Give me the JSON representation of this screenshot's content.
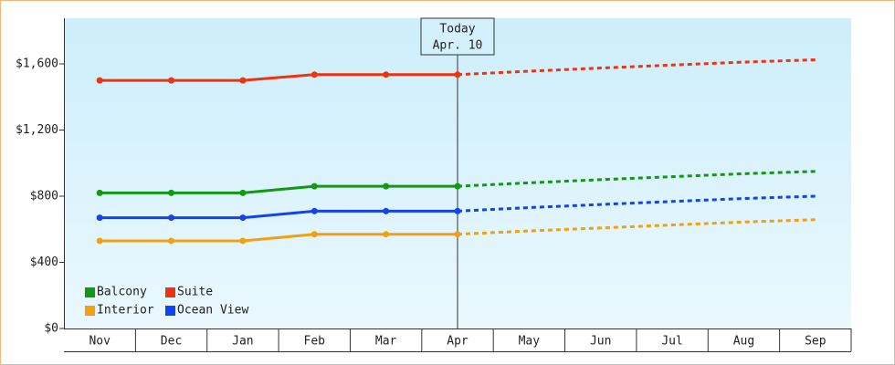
{
  "chart_data": {
    "type": "line",
    "categories": [
      "Nov",
      "Dec",
      "Jan",
      "Feb",
      "Mar",
      "Apr",
      "May",
      "Jun",
      "Jul",
      "Aug",
      "Sep"
    ],
    "series": [
      {
        "name": "Balcony",
        "color": "#119911",
        "values": [
          820,
          820,
          820,
          860,
          860,
          860,
          881,
          900,
          918,
          936,
          950
        ]
      },
      {
        "name": "Suite",
        "color": "#ee3311",
        "values": [
          1500,
          1500,
          1500,
          1535,
          1535,
          1535,
          1556,
          1575,
          1593,
          1611,
          1625
        ]
      },
      {
        "name": "Interior",
        "color": "#f0a010",
        "values": [
          530,
          530,
          530,
          570,
          570,
          570,
          590,
          608,
          626,
          644,
          658
        ]
      },
      {
        "name": "Ocean View",
        "color": "#1144ee",
        "values": [
          670,
          670,
          670,
          710,
          710,
          710,
          731,
          750,
          768,
          786,
          800
        ]
      }
    ],
    "annotation": {
      "text": [
        "Today",
        "Apr. 10"
      ],
      "at": "Apr"
    },
    "ylim": [
      0,
      1876
    ],
    "yticks": [
      {
        "value": 0,
        "label": "$0"
      },
      {
        "value": 400,
        "label": "$400"
      },
      {
        "value": 800,
        "label": "$800"
      },
      {
        "value": 1200,
        "label": "$1,200"
      },
      {
        "value": 1600,
        "label": "$1,600"
      }
    ]
  }
}
